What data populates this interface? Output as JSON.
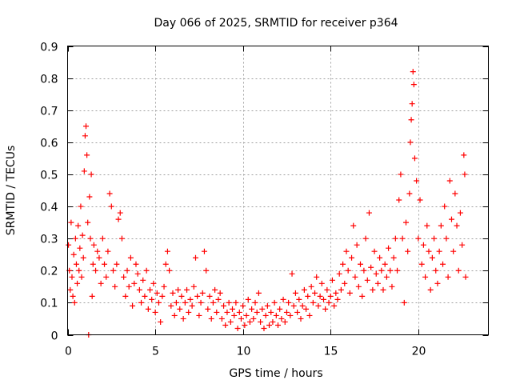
{
  "chart_data": {
    "type": "scatter",
    "title": "Day 066 of 2025, SRMTID for receiver p364",
    "xlabel": "GPS time / hours",
    "ylabel": "SRMTID / TECUs",
    "xlim": [
      0,
      24
    ],
    "ylim": [
      0,
      0.9
    ],
    "xticks": [
      "0",
      "5",
      "10",
      "15",
      "20"
    ],
    "yticks": [
      "0",
      "0.1",
      "0.2",
      "0.3",
      "0.4",
      "0.5",
      "0.6",
      "0.7",
      "0.8",
      "0.9"
    ],
    "grid": true,
    "marker": "+",
    "color": "#ff0000",
    "series": [
      {
        "name": "SRMTID",
        "points": [
          [
            0.05,
            0.28
          ],
          [
            0.1,
            0.2
          ],
          [
            0.15,
            0.14
          ],
          [
            0.2,
            0.35
          ],
          [
            0.25,
            0.18
          ],
          [
            0.3,
            0.12
          ],
          [
            0.35,
            0.25
          ],
          [
            0.4,
            0.1
          ],
          [
            0.45,
            0.3
          ],
          [
            0.5,
            0.22
          ],
          [
            0.55,
            0.16
          ],
          [
            0.6,
            0.34
          ],
          [
            0.65,
            0.2
          ],
          [
            0.7,
            0.27
          ],
          [
            0.75,
            0.4
          ],
          [
            0.8,
            0.18
          ],
          [
            0.85,
            0.31
          ],
          [
            0.9,
            0.24
          ],
          [
            0.95,
            0.51
          ],
          [
            1.0,
            0.62
          ],
          [
            1.05,
            0.65
          ],
          [
            1.1,
            0.56
          ],
          [
            1.15,
            0.35
          ],
          [
            1.2,
            0.0
          ],
          [
            1.25,
            0.43
          ],
          [
            1.3,
            0.3
          ],
          [
            1.35,
            0.5
          ],
          [
            1.4,
            0.12
          ],
          [
            1.45,
            0.22
          ],
          [
            1.5,
            0.28
          ],
          [
            1.6,
            0.2
          ],
          [
            1.7,
            0.26
          ],
          [
            1.8,
            0.24
          ],
          [
            1.9,
            0.16
          ],
          [
            2.0,
            0.3
          ],
          [
            2.1,
            0.22
          ],
          [
            2.2,
            0.18
          ],
          [
            2.3,
            0.26
          ],
          [
            2.4,
            0.44
          ],
          [
            2.5,
            0.4
          ],
          [
            2.6,
            0.2
          ],
          [
            2.7,
            0.15
          ],
          [
            2.8,
            0.22
          ],
          [
            2.9,
            0.36
          ],
          [
            3.0,
            0.38
          ],
          [
            3.1,
            0.3
          ],
          [
            3.2,
            0.18
          ],
          [
            3.3,
            0.12
          ],
          [
            3.4,
            0.2
          ],
          [
            3.5,
            0.15
          ],
          [
            3.6,
            0.24
          ],
          [
            3.7,
            0.09
          ],
          [
            3.8,
            0.16
          ],
          [
            3.9,
            0.22
          ],
          [
            4.0,
            0.19
          ],
          [
            4.1,
            0.14
          ],
          [
            4.2,
            0.1
          ],
          [
            4.3,
            0.17
          ],
          [
            4.4,
            0.12
          ],
          [
            4.5,
            0.2
          ],
          [
            4.6,
            0.08
          ],
          [
            4.7,
            0.14
          ],
          [
            4.8,
            0.11
          ],
          [
            4.9,
            0.16
          ],
          [
            5.0,
            0.07
          ],
          [
            5.1,
            0.13
          ],
          [
            5.2,
            0.1
          ],
          [
            5.3,
            0.04
          ],
          [
            5.4,
            0.12
          ],
          [
            5.5,
            0.15
          ],
          [
            5.6,
            0.22
          ],
          [
            5.7,
            0.26
          ],
          [
            5.8,
            0.2
          ],
          [
            5.9,
            0.09
          ],
          [
            6.0,
            0.13
          ],
          [
            6.1,
            0.06
          ],
          [
            6.2,
            0.1
          ],
          [
            6.3,
            0.14
          ],
          [
            6.4,
            0.08
          ],
          [
            6.5,
            0.12
          ],
          [
            6.6,
            0.05
          ],
          [
            6.7,
            0.1
          ],
          [
            6.8,
            0.14
          ],
          [
            6.9,
            0.07
          ],
          [
            7.0,
            0.11
          ],
          [
            7.1,
            0.09
          ],
          [
            7.2,
            0.15
          ],
          [
            7.3,
            0.24
          ],
          [
            7.4,
            0.12
          ],
          [
            7.5,
            0.06
          ],
          [
            7.6,
            0.1
          ],
          [
            7.7,
            0.13
          ],
          [
            7.8,
            0.26
          ],
          [
            7.9,
            0.2
          ],
          [
            8.0,
            0.08
          ],
          [
            8.1,
            0.12
          ],
          [
            8.2,
            0.05
          ],
          [
            8.3,
            0.1
          ],
          [
            8.4,
            0.14
          ],
          [
            8.5,
            0.07
          ],
          [
            8.6,
            0.11
          ],
          [
            8.7,
            0.13
          ],
          [
            8.8,
            0.05
          ],
          [
            8.9,
            0.09
          ],
          [
            9.0,
            0.03
          ],
          [
            9.1,
            0.07
          ],
          [
            9.2,
            0.1
          ],
          [
            9.3,
            0.04
          ],
          [
            9.4,
            0.08
          ],
          [
            9.5,
            0.06
          ],
          [
            9.6,
            0.1
          ],
          [
            9.7,
            0.02
          ],
          [
            9.8,
            0.07
          ],
          [
            9.9,
            0.05
          ],
          [
            10.0,
            0.09
          ],
          [
            10.1,
            0.03
          ],
          [
            10.2,
            0.06
          ],
          [
            10.3,
            0.11
          ],
          [
            10.4,
            0.04
          ],
          [
            10.5,
            0.08
          ],
          [
            10.6,
            0.05
          ],
          [
            10.7,
            0.1
          ],
          [
            10.8,
            0.07
          ],
          [
            10.9,
            0.13
          ],
          [
            11.0,
            0.04
          ],
          [
            11.1,
            0.08
          ],
          [
            11.2,
            0.02
          ],
          [
            11.3,
            0.06
          ],
          [
            11.4,
            0.09
          ],
          [
            11.5,
            0.03
          ],
          [
            11.6,
            0.07
          ],
          [
            11.7,
            0.04
          ],
          [
            11.8,
            0.1
          ],
          [
            11.9,
            0.06
          ],
          [
            12.0,
            0.03
          ],
          [
            12.1,
            0.08
          ],
          [
            12.2,
            0.05
          ],
          [
            12.3,
            0.11
          ],
          [
            12.4,
            0.04
          ],
          [
            12.5,
            0.07
          ],
          [
            12.6,
            0.1
          ],
          [
            12.7,
            0.06
          ],
          [
            12.8,
            0.19
          ],
          [
            12.9,
            0.09
          ],
          [
            13.0,
            0.13
          ],
          [
            13.1,
            0.07
          ],
          [
            13.2,
            0.11
          ],
          [
            13.3,
            0.05
          ],
          [
            13.4,
            0.09
          ],
          [
            13.5,
            0.14
          ],
          [
            13.6,
            0.08
          ],
          [
            13.7,
            0.12
          ],
          [
            13.8,
            0.06
          ],
          [
            13.9,
            0.15
          ],
          [
            14.0,
            0.1
          ],
          [
            14.1,
            0.13
          ],
          [
            14.2,
            0.18
          ],
          [
            14.3,
            0.09
          ],
          [
            14.4,
            0.12
          ],
          [
            14.5,
            0.16
          ],
          [
            14.6,
            0.11
          ],
          [
            14.7,
            0.08
          ],
          [
            14.8,
            0.14
          ],
          [
            14.9,
            0.1
          ],
          [
            15.0,
            0.12
          ],
          [
            15.1,
            0.17
          ],
          [
            15.2,
            0.09
          ],
          [
            15.3,
            0.13
          ],
          [
            15.4,
            0.11
          ],
          [
            15.5,
            0.19
          ],
          [
            15.6,
            0.14
          ],
          [
            15.7,
            0.22
          ],
          [
            15.8,
            0.16
          ],
          [
            15.9,
            0.26
          ],
          [
            16.0,
            0.2
          ],
          [
            16.1,
            0.13
          ],
          [
            16.2,
            0.24
          ],
          [
            16.3,
            0.34
          ],
          [
            16.4,
            0.18
          ],
          [
            16.5,
            0.28
          ],
          [
            16.6,
            0.15
          ],
          [
            16.7,
            0.22
          ],
          [
            16.8,
            0.12
          ],
          [
            16.9,
            0.2
          ],
          [
            17.0,
            0.3
          ],
          [
            17.1,
            0.17
          ],
          [
            17.2,
            0.38
          ],
          [
            17.3,
            0.21
          ],
          [
            17.4,
            0.14
          ],
          [
            17.5,
            0.26
          ],
          [
            17.6,
            0.19
          ],
          [
            17.7,
            0.16
          ],
          [
            17.8,
            0.24
          ],
          [
            17.9,
            0.2
          ],
          [
            18.0,
            0.14
          ],
          [
            18.1,
            0.22
          ],
          [
            18.2,
            0.18
          ],
          [
            18.3,
            0.27
          ],
          [
            18.4,
            0.2
          ],
          [
            18.5,
            0.15
          ],
          [
            18.6,
            0.24
          ],
          [
            18.7,
            0.3
          ],
          [
            18.8,
            0.2
          ],
          [
            18.9,
            0.42
          ],
          [
            19.0,
            0.5
          ],
          [
            19.1,
            0.3
          ],
          [
            19.2,
            0.1
          ],
          [
            19.3,
            0.35
          ],
          [
            19.4,
            0.26
          ],
          [
            19.5,
            0.44
          ],
          [
            19.55,
            0.6
          ],
          [
            19.6,
            0.67
          ],
          [
            19.65,
            0.72
          ],
          [
            19.7,
            0.82
          ],
          [
            19.75,
            0.78
          ],
          [
            19.8,
            0.55
          ],
          [
            19.9,
            0.48
          ],
          [
            20.0,
            0.3
          ],
          [
            20.1,
            0.42
          ],
          [
            20.2,
            0.22
          ],
          [
            20.3,
            0.28
          ],
          [
            20.4,
            0.18
          ],
          [
            20.5,
            0.34
          ],
          [
            20.6,
            0.26
          ],
          [
            20.7,
            0.14
          ],
          [
            20.8,
            0.24
          ],
          [
            20.9,
            0.3
          ],
          [
            21.0,
            0.2
          ],
          [
            21.1,
            0.16
          ],
          [
            21.2,
            0.26
          ],
          [
            21.3,
            0.34
          ],
          [
            21.4,
            0.22
          ],
          [
            21.5,
            0.4
          ],
          [
            21.6,
            0.3
          ],
          [
            21.7,
            0.18
          ],
          [
            21.8,
            0.48
          ],
          [
            21.9,
            0.36
          ],
          [
            22.0,
            0.26
          ],
          [
            22.1,
            0.44
          ],
          [
            22.2,
            0.34
          ],
          [
            22.3,
            0.2
          ],
          [
            22.4,
            0.38
          ],
          [
            22.5,
            0.28
          ],
          [
            22.6,
            0.56
          ],
          [
            22.7,
            0.18
          ],
          [
            22.65,
            0.5
          ]
        ]
      }
    ]
  }
}
